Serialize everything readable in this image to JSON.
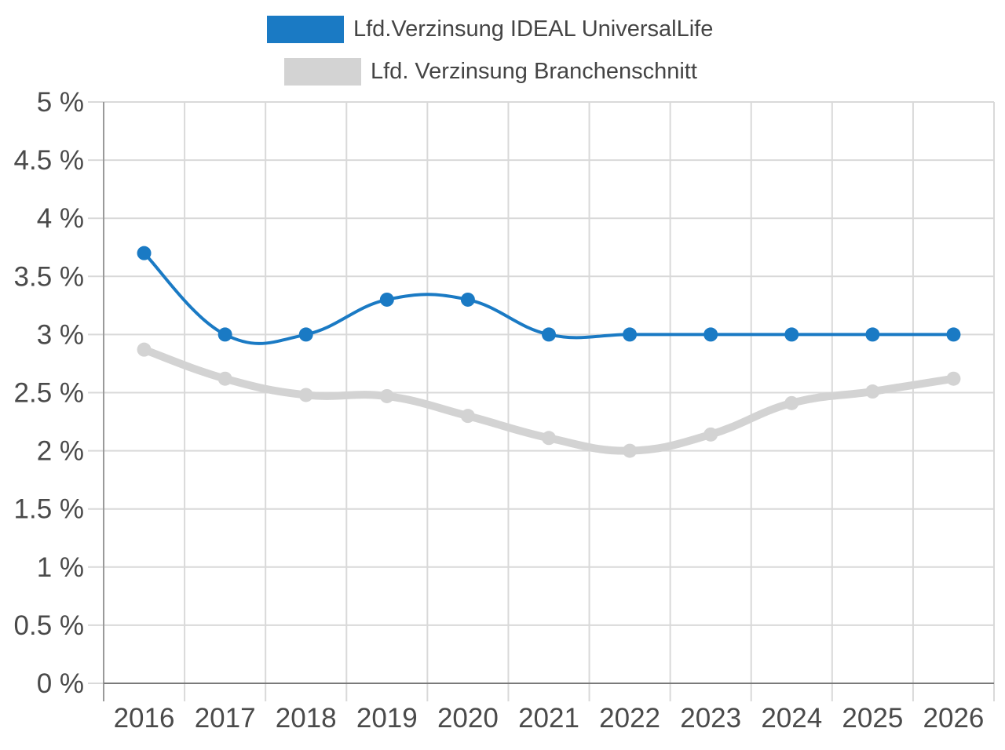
{
  "chart_data": {
    "type": "line",
    "title": "",
    "xlabel": "",
    "ylabel": "",
    "categories": [
      "2016",
      "2017",
      "2018",
      "2019",
      "2020",
      "2021",
      "2022",
      "2023",
      "2024",
      "2025",
      "2026"
    ],
    "ylim": [
      0,
      5
    ],
    "yticks": [
      0,
      0.5,
      1,
      1.5,
      2,
      2.5,
      3,
      3.5,
      4,
      4.5,
      5
    ],
    "ytick_labels": [
      "0 %",
      "0.5 %",
      "1 %",
      "1.5 %",
      "2 %",
      "2.5 %",
      "3 %",
      "3.5 %",
      "4 %",
      "4.5 %",
      "5 %"
    ],
    "grid": true,
    "legend_position": "top-center",
    "series": [
      {
        "name": "Lfd.Verzinsung IDEAL UniversalLife",
        "color": "#1a7ac4",
        "values": [
          3.7,
          3.0,
          3.0,
          3.3,
          3.3,
          3.0,
          3.0,
          3.0,
          3.0,
          3.0,
          3.0
        ]
      },
      {
        "name": "Lfd. Verzinsung Branchenschnitt",
        "color": "#d3d3d3",
        "values": [
          2.87,
          2.62,
          2.48,
          2.47,
          2.3,
          2.11,
          2.0,
          2.14,
          2.41,
          2.51,
          2.62
        ]
      }
    ]
  }
}
